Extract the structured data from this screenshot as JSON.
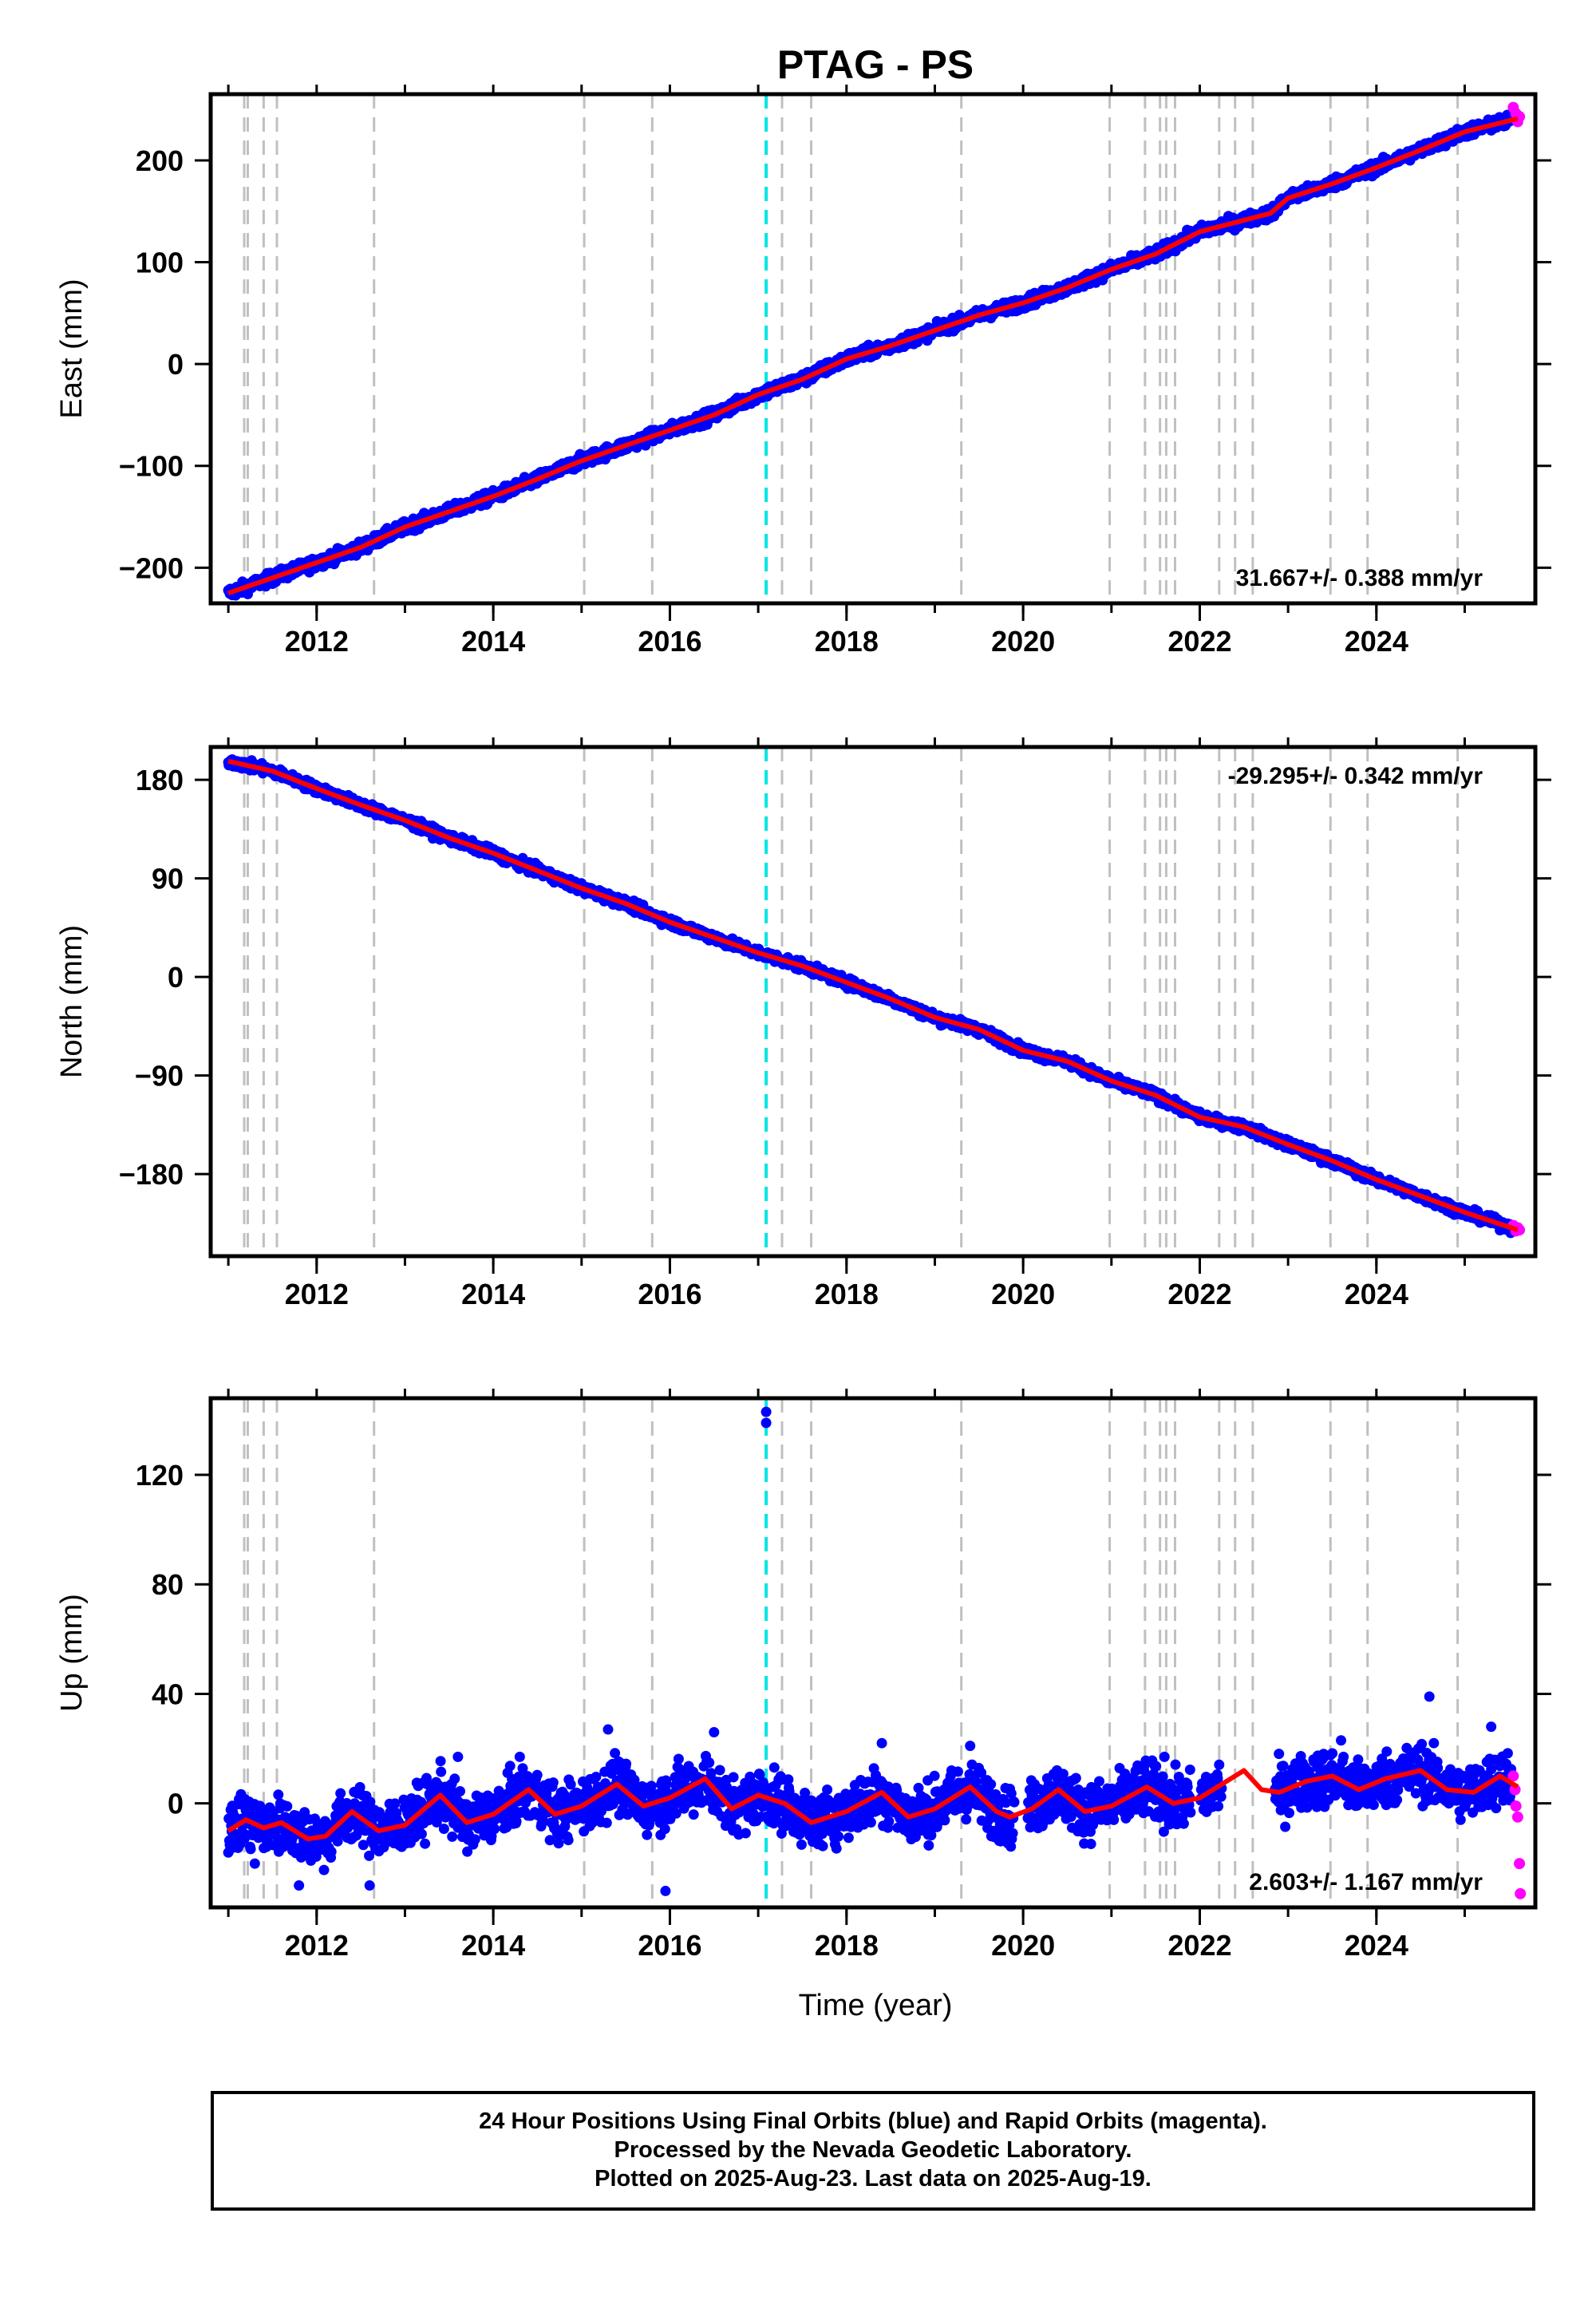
{
  "title": "PTAG - PS",
  "xlabel": "Time (year)",
  "footer": {
    "line1": "24 Hour Positions Using Final Orbits (blue) and Rapid Orbits (magenta).",
    "line2": "Processed by the Nevada Geodetic Laboratory.",
    "line3": "Plotted on 2025-Aug-23. Last data on 2025-Aug-19."
  },
  "colors": {
    "final_orbits": "#0000ff",
    "rapid_orbits": "#ff00ff",
    "model": "#ff0000",
    "equipment_change": "#c0c0c0",
    "earthquake": "#00e5e5"
  },
  "chart_data": [
    {
      "type": "scatter",
      "panel": "east",
      "ylabel": "East (mm)",
      "xlim": [
        2010.8,
        2025.8
      ],
      "ylim": [
        -235,
        265
      ],
      "xticks": [
        2012,
        2014,
        2016,
        2018,
        2020,
        2022,
        2024
      ],
      "yticks": [
        -200,
        -100,
        0,
        100,
        200
      ],
      "ytick_labels": [
        "−200",
        "−100",
        "0",
        "100",
        "200"
      ],
      "rate_label": "31.667+/- 0.388 mm/yr",
      "rate_position": "bottom-right",
      "model_points": [
        [
          2011.0,
          -225
        ],
        [
          2011.5,
          -210
        ],
        [
          2012.0,
          -195
        ],
        [
          2012.5,
          -180
        ],
        [
          2013.0,
          -160
        ],
        [
          2013.5,
          -145
        ],
        [
          2014.0,
          -130
        ],
        [
          2014.5,
          -113
        ],
        [
          2015.0,
          -95
        ],
        [
          2015.5,
          -80
        ],
        [
          2016.0,
          -65
        ],
        [
          2016.5,
          -50
        ],
        [
          2017.0,
          -30
        ],
        [
          2017.5,
          -15
        ],
        [
          2018.0,
          5
        ],
        [
          2018.5,
          18
        ],
        [
          2019.0,
          33
        ],
        [
          2019.5,
          48
        ],
        [
          2020.0,
          60
        ],
        [
          2020.5,
          75
        ],
        [
          2021.0,
          93
        ],
        [
          2021.5,
          108
        ],
        [
          2022.0,
          130
        ],
        [
          2022.8,
          148
        ],
        [
          2023.0,
          163
        ],
        [
          2023.5,
          177
        ],
        [
          2024.0,
          193
        ],
        [
          2024.5,
          210
        ],
        [
          2025.0,
          228
        ],
        [
          2025.6,
          241
        ]
      ],
      "noise": 4,
      "outliers": [],
      "rapid_points": [
        [
          2025.55,
          252
        ],
        [
          2025.58,
          246
        ],
        [
          2025.6,
          238
        ],
        [
          2025.62,
          243
        ]
      ]
    },
    {
      "type": "scatter",
      "panel": "north",
      "ylabel": "North (mm)",
      "xlim": [
        2010.8,
        2025.8
      ],
      "ylim": [
        -255,
        210
      ],
      "xticks": [
        2012,
        2014,
        2016,
        2018,
        2020,
        2022,
        2024
      ],
      "yticks": [
        -180,
        -90,
        0,
        90,
        180
      ],
      "ytick_labels": [
        "−180",
        "−90",
        "0",
        "90",
        "180"
      ],
      "rate_label": "-29.295+/- 0.342 mm/yr",
      "rate_position": "top-right",
      "model_points": [
        [
          2011.0,
          197
        ],
        [
          2011.5,
          188
        ],
        [
          2012.0,
          172
        ],
        [
          2012.5,
          157
        ],
        [
          2013.0,
          143
        ],
        [
          2013.5,
          127
        ],
        [
          2014.0,
          113
        ],
        [
          2014.5,
          97
        ],
        [
          2015.0,
          81
        ],
        [
          2015.5,
          67
        ],
        [
          2016.0,
          50
        ],
        [
          2016.5,
          36
        ],
        [
          2017.0,
          22
        ],
        [
          2017.5,
          10
        ],
        [
          2018.0,
          -5
        ],
        [
          2018.5,
          -20
        ],
        [
          2019.0,
          -37
        ],
        [
          2019.5,
          -48
        ],
        [
          2020.0,
          -67
        ],
        [
          2020.5,
          -77
        ],
        [
          2021.0,
          -95
        ],
        [
          2021.5,
          -108
        ],
        [
          2022.0,
          -128
        ],
        [
          2022.5,
          -137
        ],
        [
          2023.0,
          -153
        ],
        [
          2023.5,
          -168
        ],
        [
          2024.0,
          -185
        ],
        [
          2024.5,
          -200
        ],
        [
          2025.0,
          -215
        ],
        [
          2025.6,
          -231
        ]
      ],
      "noise": 3,
      "outliers": [],
      "rapid_points": [
        [
          2025.55,
          -227
        ],
        [
          2025.58,
          -232
        ],
        [
          2025.6,
          -229
        ],
        [
          2025.62,
          -231
        ]
      ]
    },
    {
      "type": "scatter",
      "panel": "up",
      "ylabel": "Up (mm)",
      "xlim": [
        2010.8,
        2025.8
      ],
      "ylim": [
        -38,
        148
      ],
      "xticks": [
        2012,
        2014,
        2016,
        2018,
        2020,
        2022,
        2024
      ],
      "yticks": [
        0,
        40,
        80,
        120
      ],
      "ytick_labels": [
        "0",
        "40",
        "80",
        "120"
      ],
      "rate_label": "2.603+/- 1.167 mm/yr",
      "rate_position": "bottom-right",
      "model_points": [
        [
          2011.0,
          -10
        ],
        [
          2011.2,
          -6
        ],
        [
          2011.4,
          -9
        ],
        [
          2011.6,
          -7
        ],
        [
          2011.9,
          -13
        ],
        [
          2012.1,
          -12
        ],
        [
          2012.4,
          -3
        ],
        [
          2012.7,
          -10
        ],
        [
          2013.0,
          -8
        ],
        [
          2013.4,
          3
        ],
        [
          2013.7,
          -7
        ],
        [
          2014.0,
          -4
        ],
        [
          2014.4,
          5
        ],
        [
          2014.7,
          -4
        ],
        [
          2015.0,
          -1
        ],
        [
          2015.4,
          7
        ],
        [
          2015.7,
          -1
        ],
        [
          2016.0,
          2
        ],
        [
          2016.4,
          9
        ],
        [
          2016.7,
          -2
        ],
        [
          2017.0,
          3
        ],
        [
          2017.3,
          0
        ],
        [
          2017.6,
          -7
        ],
        [
          2018.0,
          -3
        ],
        [
          2018.4,
          4
        ],
        [
          2018.7,
          -5
        ],
        [
          2019.0,
          -2
        ],
        [
          2019.4,
          6
        ],
        [
          2019.7,
          -3
        ],
        [
          2019.85,
          -5
        ],
        [
          2020.1,
          -2
        ],
        [
          2020.4,
          5
        ],
        [
          2020.7,
          -3
        ],
        [
          2021.0,
          -1
        ],
        [
          2021.4,
          6
        ],
        [
          2021.7,
          0
        ],
        [
          2022.0,
          2
        ],
        [
          2022.3,
          8
        ],
        [
          2022.5,
          12
        ],
        [
          2022.7,
          5
        ],
        [
          2022.9,
          4
        ],
        [
          2023.2,
          8
        ],
        [
          2023.5,
          10
        ],
        [
          2023.8,
          5
        ],
        [
          2024.1,
          9
        ],
        [
          2024.5,
          12
        ],
        [
          2024.8,
          5
        ],
        [
          2025.1,
          4
        ],
        [
          2025.4,
          10
        ],
        [
          2025.6,
          6
        ]
      ],
      "noise": 7,
      "gaps": [
        [
          2019.9,
          2020.05
        ],
        [
          2021.9,
          2022.0
        ],
        [
          2022.25,
          2022.85
        ]
      ],
      "outliers": [
        [
          2017.09,
          143
        ],
        [
          2017.09,
          139
        ],
        [
          2011.8,
          -30
        ],
        [
          2012.6,
          -30
        ],
        [
          2015.95,
          -32
        ],
        [
          2024.6,
          39
        ],
        [
          2015.3,
          27
        ],
        [
          2016.5,
          26
        ],
        [
          2018.4,
          22
        ],
        [
          2023.6,
          23
        ],
        [
          2025.3,
          28
        ],
        [
          2011.3,
          -22
        ],
        [
          2013.6,
          17
        ],
        [
          2014.3,
          17
        ],
        [
          2019.4,
          21
        ],
        [
          2021.6,
          17
        ]
      ],
      "rapid_points": [
        [
          2025.55,
          10
        ],
        [
          2025.57,
          5
        ],
        [
          2025.58,
          -1
        ],
        [
          2025.6,
          -5
        ],
        [
          2025.62,
          -22
        ],
        [
          2025.63,
          -33
        ]
      ]
    }
  ],
  "event_lines": {
    "equipment_changes": [
      2011.18,
      2011.22,
      2011.4,
      2011.55,
      2012.65,
      2015.03,
      2015.8,
      2017.27,
      2017.6,
      2019.3,
      2020.98,
      2021.38,
      2021.55,
      2021.62,
      2021.72,
      2022.22,
      2022.4,
      2022.6,
      2023.48,
      2023.9,
      2024.92
    ],
    "earthquakes": [
      2017.09
    ]
  }
}
